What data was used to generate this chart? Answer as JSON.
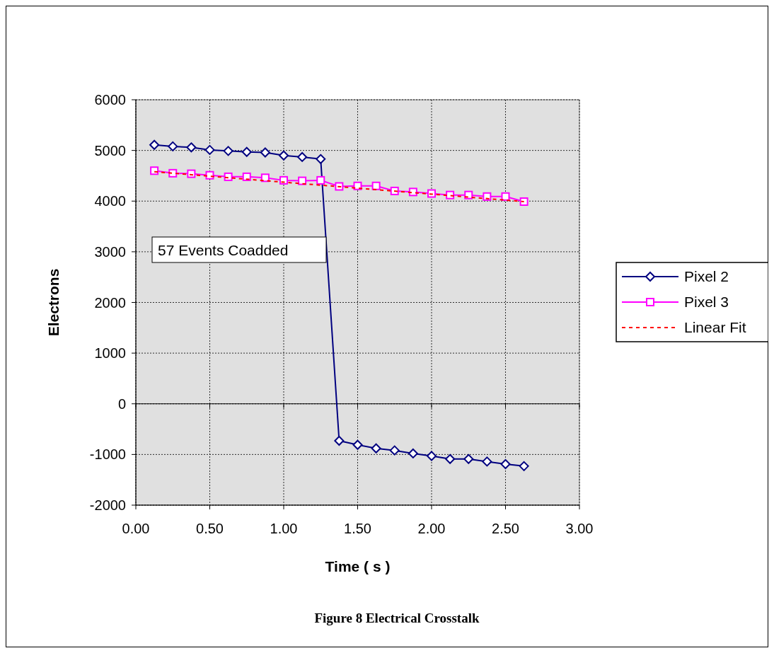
{
  "chart_data": {
    "type": "line",
    "title": "Figure 8  Electrical Crosstalk",
    "xlabel": "Time ( s )",
    "ylabel": "Electrons",
    "annotations": [
      "57 Events Coadded"
    ],
    "x": [
      0.125,
      0.25,
      0.375,
      0.5,
      0.625,
      0.75,
      0.875,
      1.0,
      1.125,
      1.25,
      1.375,
      1.5,
      1.625,
      1.75,
      1.875,
      2.0,
      2.125,
      2.25,
      2.375,
      2.5,
      2.625
    ],
    "series": [
      {
        "name": "Pixel 2",
        "color": "#000080",
        "marker": "diamond",
        "values": [
          5110,
          5080,
          5060,
          5010,
          4990,
          4970,
          4960,
          4900,
          4870,
          4830,
          -730,
          -810,
          -880,
          -920,
          -980,
          -1030,
          -1090,
          -1090,
          -1140,
          -1190,
          -1230
        ]
      },
      {
        "name": "Pixel 3",
        "color": "#ff00ff",
        "marker": "square",
        "values": [
          4600,
          4550,
          4540,
          4510,
          4480,
          4480,
          4460,
          4410,
          4400,
          4410,
          4290,
          4300,
          4300,
          4200,
          4180,
          4150,
          4120,
          4120,
          4090,
          4090,
          3990
        ]
      },
      {
        "name": "Linear Fit",
        "color": "#ff0000",
        "marker": "none",
        "line_style": "dashed",
        "x": [
          0.125,
          2.625
        ],
        "values": [
          4580,
          3990
        ]
      }
    ],
    "xlim": [
      0,
      3
    ],
    "xticks": [
      {
        "value": 0,
        "label": "0.00"
      },
      {
        "value": 0.5,
        "label": "0.50"
      },
      {
        "value": 1,
        "label": "1.00"
      },
      {
        "value": 1.5,
        "label": "1.50"
      },
      {
        "value": 2,
        "label": "2.00"
      },
      {
        "value": 2.5,
        "label": "2.50"
      },
      {
        "value": 3,
        "label": "3.00"
      }
    ],
    "ylim": [
      -2000,
      6000
    ],
    "yticks": [
      -2000,
      -1000,
      0,
      1000,
      2000,
      3000,
      4000,
      5000,
      6000
    ],
    "grid": true,
    "legend": "right"
  }
}
